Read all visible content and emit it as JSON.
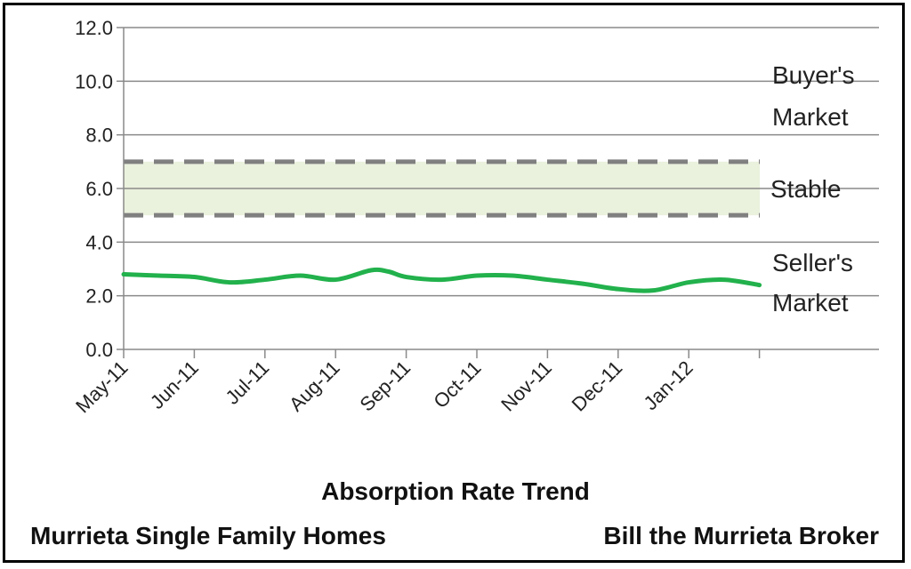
{
  "chart_data": {
    "type": "line",
    "title": "Absorption Rate Trend",
    "footer_left": "Murrieta Single Family Homes",
    "footer_right": "Bill the Murrieta Broker",
    "ylim": [
      0,
      12
    ],
    "y_ticks": [
      "0.0",
      "2.0",
      "4.0",
      "6.0",
      "8.0",
      "10.0",
      "12.0"
    ],
    "x_ticks": [
      "May-11",
      "Jun-11",
      "Jul-11",
      "Aug-11",
      "Sep-11",
      "Oct-11",
      "Nov-11",
      "Dec-11",
      "Jan-12"
    ],
    "grid": true,
    "stable_band": [
      5,
      7
    ],
    "zones": {
      "buyers_line1": "Buyer's",
      "buyers_line2": "Market",
      "stable": "Stable",
      "sellers_line1": "Seller's",
      "sellers_line2": "Market"
    },
    "series": [
      {
        "color": "#22b14c",
        "x": [
          0,
          0.5,
          1,
          1.5,
          2,
          2.5,
          3,
          3.5,
          3.75,
          4,
          4.5,
          5,
          5.5,
          6,
          6.5,
          7,
          7.5,
          8,
          8.5,
          9
        ],
        "values": [
          2.8,
          2.75,
          2.7,
          2.5,
          2.6,
          2.75,
          2.6,
          2.95,
          2.9,
          2.7,
          2.6,
          2.75,
          2.75,
          2.6,
          2.45,
          2.25,
          2.2,
          2.5,
          2.6,
          2.4
        ]
      }
    ]
  }
}
